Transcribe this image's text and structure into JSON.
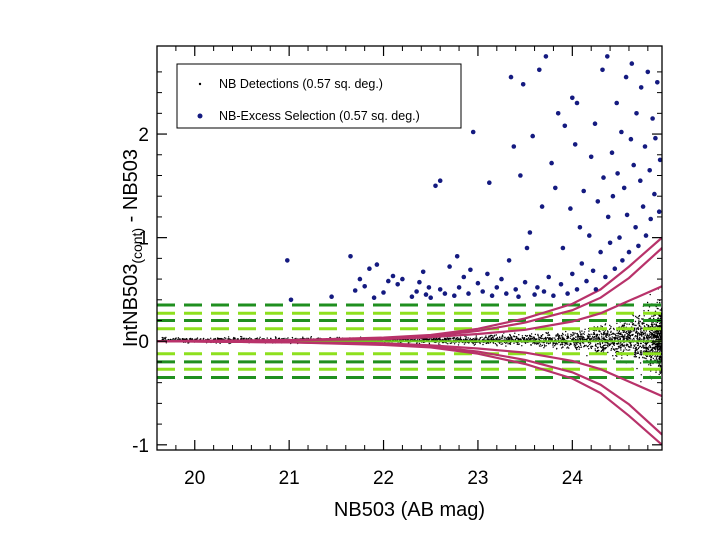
{
  "chart_data": {
    "type": "scatter",
    "xlabel": "NB503 (AB mag)",
    "ylabel_main": "IntNB503",
    "ylabel_sub": "(cont)",
    "ylabel_tail": " - NB503",
    "xlim": [
      19.6,
      24.95
    ],
    "ylim": [
      -1.05,
      2.85
    ],
    "xticks": [
      20,
      21,
      22,
      23,
      24
    ],
    "yticks": [
      -1,
      0,
      1,
      2
    ],
    "xtick_labels": [
      "20",
      "21",
      "22",
      "23",
      "24"
    ],
    "ytick_labels": [
      "-1",
      "0",
      "1",
      "2"
    ],
    "legend_position": "top-left",
    "legend": [
      {
        "label": "NB Detections (0.57 sq. deg.)",
        "marker": "small-dot",
        "color": "#000000"
      },
      {
        "label": "NB-Excess Selection (0.57 sq. deg.)",
        "marker": "dot",
        "color": "#141a80"
      }
    ],
    "colors": {
      "detections": "#000000",
      "selection": "#141a80",
      "error_curves": "#b8326a",
      "dark_green": "#1f8f1f",
      "light_green": "#8ee01e",
      "zero_line": "#6fcf1f"
    },
    "horizontal_lines": [
      {
        "y": 0.35,
        "color": "dark_green",
        "style": "dashed"
      },
      {
        "y": 0.27,
        "color": "light_green",
        "style": "dashed"
      },
      {
        "y": 0.2,
        "color": "dark_green",
        "style": "dashed"
      },
      {
        "y": 0.12,
        "color": "light_green",
        "style": "dashed"
      },
      {
        "y": 0.0,
        "color": "zero_line",
        "style": "solid"
      },
      {
        "y": -0.12,
        "color": "light_green",
        "style": "dashed"
      },
      {
        "y": -0.2,
        "color": "dark_green",
        "style": "dashed"
      },
      {
        "y": -0.27,
        "color": "light_green",
        "style": "dashed"
      },
      {
        "y": -0.35,
        "color": "dark_green",
        "style": "dashed"
      }
    ],
    "error_curves": [
      {
        "name": "",
        "x": [
          19.6,
          21.0,
          22.0,
          22.5,
          23.0,
          23.5,
          24.0,
          24.3,
          24.6,
          24.95
        ],
        "y": [
          0.0,
          0.01,
          0.02,
          0.04,
          0.07,
          0.11,
          0.19,
          0.27,
          0.39,
          0.53
        ]
      },
      {
        "name": "",
        "x": [
          19.6,
          21.0,
          22.0,
          22.5,
          23.0,
          23.5,
          24.0,
          24.3,
          24.6,
          24.95
        ],
        "y": [
          0.0,
          0.01,
          0.03,
          0.05,
          0.1,
          0.18,
          0.3,
          0.42,
          0.61,
          0.9
        ]
      },
      {
        "name": "",
        "x": [
          19.6,
          21.0,
          22.0,
          22.5,
          23.0,
          23.5,
          24.0,
          24.3,
          24.6,
          24.95
        ],
        "y": [
          0.0,
          0.01,
          0.035,
          0.06,
          0.12,
          0.22,
          0.36,
          0.5,
          0.72,
          1.0
        ]
      }
    ],
    "selection_points": [
      {
        "x": 20.98,
        "y": 0.78
      },
      {
        "x": 21.02,
        "y": 0.4
      },
      {
        "x": 21.45,
        "y": 0.43
      },
      {
        "x": 21.65,
        "y": 0.82
      },
      {
        "x": 21.7,
        "y": 0.49
      },
      {
        "x": 21.75,
        "y": 0.6
      },
      {
        "x": 21.8,
        "y": 0.53
      },
      {
        "x": 21.85,
        "y": 0.7
      },
      {
        "x": 21.9,
        "y": 0.42
      },
      {
        "x": 21.93,
        "y": 0.74
      },
      {
        "x": 22.0,
        "y": 0.47
      },
      {
        "x": 22.05,
        "y": 0.58
      },
      {
        "x": 22.1,
        "y": 0.63
      },
      {
        "x": 22.15,
        "y": 0.55
      },
      {
        "x": 22.2,
        "y": 0.6
      },
      {
        "x": 22.3,
        "y": 0.43
      },
      {
        "x": 22.35,
        "y": 0.48
      },
      {
        "x": 22.38,
        "y": 0.57
      },
      {
        "x": 22.42,
        "y": 0.67
      },
      {
        "x": 22.45,
        "y": 0.45
      },
      {
        "x": 22.48,
        "y": 0.52
      },
      {
        "x": 22.5,
        "y": 0.42
      },
      {
        "x": 22.55,
        "y": 1.5
      },
      {
        "x": 22.6,
        "y": 1.55
      },
      {
        "x": 22.6,
        "y": 0.5
      },
      {
        "x": 22.65,
        "y": 0.46
      },
      {
        "x": 22.7,
        "y": 0.72
      },
      {
        "x": 22.75,
        "y": 0.44
      },
      {
        "x": 22.78,
        "y": 0.82
      },
      {
        "x": 22.8,
        "y": 0.52
      },
      {
        "x": 22.85,
        "y": 0.62
      },
      {
        "x": 22.9,
        "y": 0.46
      },
      {
        "x": 22.92,
        "y": 0.69
      },
      {
        "x": 22.95,
        "y": 2.02
      },
      {
        "x": 23.0,
        "y": 0.56
      },
      {
        "x": 23.05,
        "y": 0.48
      },
      {
        "x": 23.1,
        "y": 0.65
      },
      {
        "x": 23.12,
        "y": 1.53
      },
      {
        "x": 23.15,
        "y": 0.44
      },
      {
        "x": 23.2,
        "y": 0.52
      },
      {
        "x": 23.25,
        "y": 0.6
      },
      {
        "x": 23.3,
        "y": 0.46
      },
      {
        "x": 23.33,
        "y": 0.78
      },
      {
        "x": 23.35,
        "y": 2.55
      },
      {
        "x": 23.38,
        "y": 1.88
      },
      {
        "x": 23.4,
        "y": 0.5
      },
      {
        "x": 23.43,
        "y": 0.43
      },
      {
        "x": 23.45,
        "y": 1.6
      },
      {
        "x": 23.48,
        "y": 2.48
      },
      {
        "x": 23.5,
        "y": 0.57
      },
      {
        "x": 23.52,
        "y": 0.9
      },
      {
        "x": 23.55,
        "y": 1.05
      },
      {
        "x": 23.58,
        "y": 1.98
      },
      {
        "x": 23.6,
        "y": 0.45
      },
      {
        "x": 23.63,
        "y": 0.52
      },
      {
        "x": 23.65,
        "y": 2.62
      },
      {
        "x": 23.68,
        "y": 1.3
      },
      {
        "x": 23.7,
        "y": 0.48
      },
      {
        "x": 23.72,
        "y": 2.75
      },
      {
        "x": 23.75,
        "y": 0.62
      },
      {
        "x": 23.78,
        "y": 1.72
      },
      {
        "x": 23.8,
        "y": 0.44
      },
      {
        "x": 23.82,
        "y": 1.48
      },
      {
        "x": 23.85,
        "y": 2.2
      },
      {
        "x": 23.88,
        "y": 0.55
      },
      {
        "x": 23.9,
        "y": 0.9
      },
      {
        "x": 23.92,
        "y": 2.08
      },
      {
        "x": 23.95,
        "y": 0.46
      },
      {
        "x": 23.98,
        "y": 1.28
      },
      {
        "x": 24.0,
        "y": 2.35
      },
      {
        "x": 24.0,
        "y": 0.65
      },
      {
        "x": 24.03,
        "y": 1.9
      },
      {
        "x": 24.05,
        "y": 2.3
      },
      {
        "x": 24.05,
        "y": 0.5
      },
      {
        "x": 24.08,
        "y": 1.1
      },
      {
        "x": 24.1,
        "y": 0.75
      },
      {
        "x": 24.12,
        "y": 1.45
      },
      {
        "x": 24.15,
        "y": 0.58
      },
      {
        "x": 24.18,
        "y": 1.02
      },
      {
        "x": 24.2,
        "y": 1.78
      },
      {
        "x": 24.22,
        "y": 0.68
      },
      {
        "x": 24.24,
        "y": 2.1
      },
      {
        "x": 24.25,
        "y": 0.5
      },
      {
        "x": 24.27,
        "y": 1.35
      },
      {
        "x": 24.3,
        "y": 0.86
      },
      {
        "x": 24.32,
        "y": 2.62
      },
      {
        "x": 24.33,
        "y": 1.58
      },
      {
        "x": 24.35,
        "y": 0.62
      },
      {
        "x": 24.37,
        "y": 2.75
      },
      {
        "x": 24.38,
        "y": 1.2
      },
      {
        "x": 24.4,
        "y": 0.95
      },
      {
        "x": 24.42,
        "y": 1.82
      },
      {
        "x": 24.43,
        "y": 1.4
      },
      {
        "x": 24.45,
        "y": 0.7
      },
      {
        "x": 24.47,
        "y": 2.3
      },
      {
        "x": 24.48,
        "y": 1.62
      },
      {
        "x": 24.5,
        "y": 1.0
      },
      {
        "x": 24.52,
        "y": 2.02
      },
      {
        "x": 24.53,
        "y": 0.78
      },
      {
        "x": 24.55,
        "y": 1.48
      },
      {
        "x": 24.57,
        "y": 2.55
      },
      {
        "x": 24.58,
        "y": 1.22
      },
      {
        "x": 24.6,
        "y": 0.86
      },
      {
        "x": 24.62,
        "y": 1.95
      },
      {
        "x": 24.63,
        "y": 2.68
      },
      {
        "x": 24.65,
        "y": 1.7
      },
      {
        "x": 24.67,
        "y": 1.1
      },
      {
        "x": 24.68,
        "y": 2.2
      },
      {
        "x": 24.7,
        "y": 0.92
      },
      {
        "x": 24.72,
        "y": 1.55
      },
      {
        "x": 24.73,
        "y": 2.45
      },
      {
        "x": 24.75,
        "y": 1.3
      },
      {
        "x": 24.77,
        "y": 1.88
      },
      {
        "x": 24.78,
        "y": 1.02
      },
      {
        "x": 24.8,
        "y": 2.6
      },
      {
        "x": 24.82,
        "y": 1.65
      },
      {
        "x": 24.83,
        "y": 1.18
      },
      {
        "x": 24.85,
        "y": 2.15
      },
      {
        "x": 24.87,
        "y": 1.42
      },
      {
        "x": 24.88,
        "y": 1.96
      },
      {
        "x": 24.9,
        "y": 2.5
      },
      {
        "x": 24.92,
        "y": 1.25
      },
      {
        "x": 24.93,
        "y": 1.75
      }
    ]
  }
}
